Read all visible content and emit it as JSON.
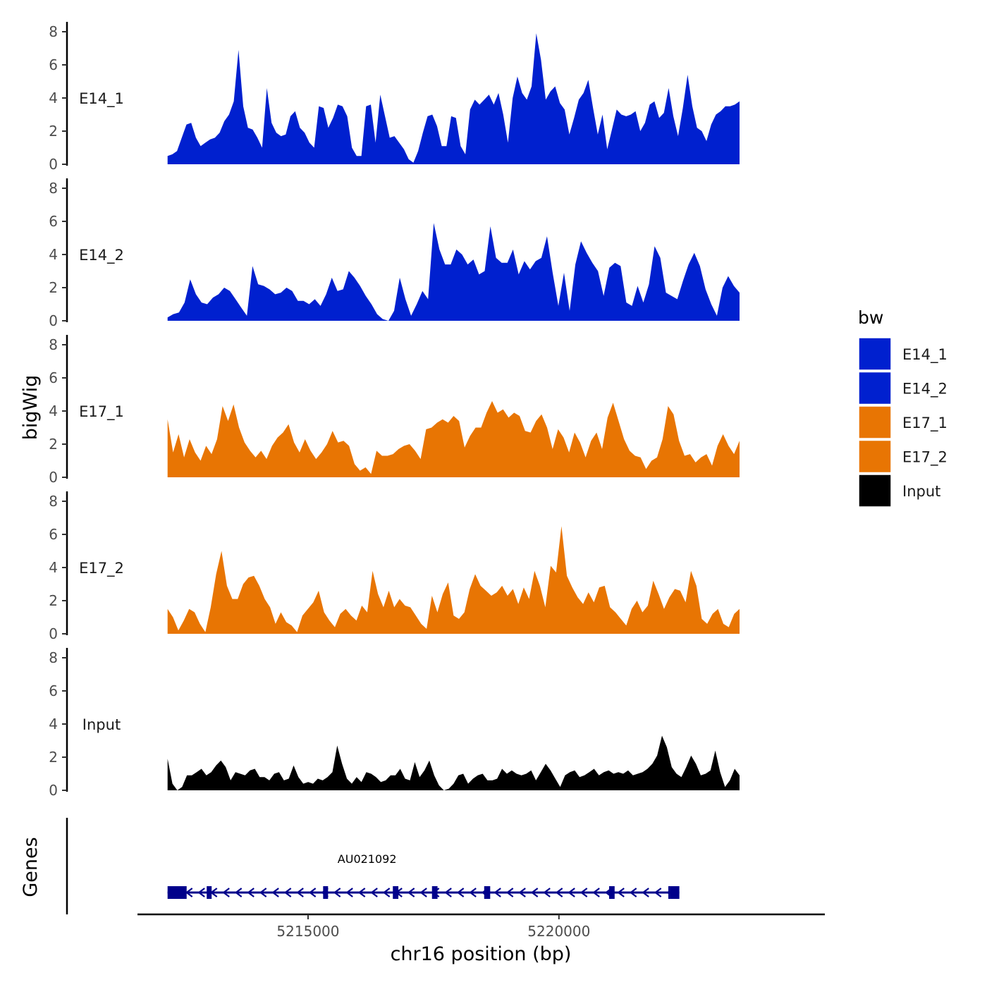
{
  "chart_data": {
    "type": "area",
    "ylabel": "bigWig",
    "xlabel": "chr16 position (bp)",
    "genes_label": "Genes",
    "ylim": [
      0,
      8
    ],
    "yticks": [
      0,
      2,
      4,
      6,
      8
    ],
    "xlim": [
      5211600,
      5225300
    ],
    "xticks": [
      5215000,
      5220000
    ],
    "xtick_labels": [
      "5215000",
      "5220000"
    ],
    "data_range": [
      5212200,
      5223600
    ],
    "legend": {
      "title": "bw",
      "entries": [
        {
          "label": "E14_1",
          "color": "#0020CF"
        },
        {
          "label": "E14_2",
          "color": "#0020CF"
        },
        {
          "label": "E17_1",
          "color": "#E87503"
        },
        {
          "label": "E17_2",
          "color": "#E87503"
        },
        {
          "label": "Input",
          "color": "#000000"
        }
      ]
    },
    "series": [
      {
        "name": "E14_1",
        "color": "#0020CF",
        "values": [
          0.5,
          0.6,
          0.8,
          1.6,
          2.4,
          2.5,
          1.6,
          1.1,
          1.3,
          1.5,
          1.6,
          1.9,
          2.6,
          3.0,
          3.8,
          6.9,
          3.5,
          2.2,
          2.1,
          1.6,
          1.0,
          4.6,
          2.5,
          1.9,
          1.7,
          1.8,
          2.9,
          3.2,
          2.2,
          1.9,
          1.3,
          1.0,
          3.5,
          3.4,
          2.2,
          2.8,
          3.6,
          3.5,
          2.9,
          1.0,
          0.5,
          0.5,
          3.5,
          3.6,
          1.3,
          4.2,
          2.9,
          1.6,
          1.7,
          1.3,
          0.9,
          0.3,
          0.1,
          0.8,
          1.9,
          2.9,
          3.0,
          2.3,
          1.1,
          1.1,
          2.9,
          2.8,
          1.1,
          0.6,
          3.3,
          3.9,
          3.6,
          3.9,
          4.2,
          3.6,
          4.3,
          3.0,
          1.3,
          4.0,
          5.3,
          4.3,
          3.9,
          4.7,
          7.9,
          6.3,
          3.9,
          4.4,
          4.7,
          3.7,
          3.3,
          1.8,
          2.8,
          3.9,
          4.3,
          5.1,
          3.4,
          1.8,
          3.0,
          0.9,
          2.1,
          3.3,
          3.0,
          2.9,
          3.0,
          3.2,
          2.0,
          2.5,
          3.6,
          3.8,
          2.8,
          3.1,
          4.6,
          2.9,
          1.7,
          3.4,
          5.4,
          3.5,
          2.2,
          2.0,
          1.4,
          2.4,
          3.0,
          3.2,
          3.5,
          3.5,
          3.6,
          3.8
        ]
      },
      {
        "name": "E14_2",
        "color": "#0020CF",
        "values": [
          0.2,
          0.4,
          0.5,
          1.1,
          2.5,
          1.6,
          1.1,
          1.0,
          1.4,
          1.6,
          2.0,
          1.8,
          1.3,
          0.8,
          0.3,
          3.3,
          2.2,
          2.1,
          1.9,
          1.6,
          1.7,
          2.0,
          1.8,
          1.2,
          1.2,
          1.0,
          1.3,
          0.9,
          1.6,
          2.6,
          1.8,
          1.9,
          3.0,
          2.6,
          2.1,
          1.5,
          1.0,
          0.4,
          0.1,
          0.0,
          0.6,
          2.6,
          1.3,
          0.3,
          1.0,
          1.8,
          1.3,
          5.9,
          4.3,
          3.4,
          3.4,
          4.3,
          4.0,
          3.4,
          3.7,
          2.8,
          3.0,
          5.7,
          3.8,
          3.5,
          3.5,
          4.3,
          2.8,
          3.6,
          3.1,
          3.6,
          3.8,
          5.1,
          2.9,
          0.9,
          2.9,
          0.6,
          3.4,
          4.8,
          4.1,
          3.5,
          3.0,
          1.5,
          3.2,
          3.5,
          3.3,
          1.1,
          0.9,
          2.1,
          1.1,
          2.2,
          4.5,
          3.8,
          1.7,
          1.5,
          1.3,
          2.4,
          3.4,
          4.1,
          3.3,
          1.9,
          1.0,
          0.3,
          2.0,
          2.7,
          2.1,
          1.7
        ]
      },
      {
        "name": "E17_1",
        "color": "#E87503",
        "values": [
          3.5,
          1.5,
          2.6,
          1.2,
          2.3,
          1.5,
          1.0,
          1.9,
          1.4,
          2.3,
          4.3,
          3.4,
          4.4,
          3.0,
          2.1,
          1.6,
          1.2,
          1.6,
          1.1,
          1.9,
          2.4,
          2.7,
          3.2,
          2.1,
          1.5,
          2.3,
          1.6,
          1.1,
          1.5,
          2.0,
          2.8,
          2.1,
          2.2,
          1.9,
          0.8,
          0.4,
          0.6,
          0.2,
          1.6,
          1.3,
          1.3,
          1.4,
          1.7,
          1.9,
          2.0,
          1.6,
          1.1,
          2.9,
          3.0,
          3.3,
          3.5,
          3.3,
          3.7,
          3.4,
          1.8,
          2.5,
          3.0,
          3.0,
          3.9,
          4.6,
          3.9,
          4.1,
          3.6,
          3.9,
          3.7,
          2.8,
          2.7,
          3.4,
          3.8,
          3.0,
          1.7,
          2.9,
          2.4,
          1.5,
          2.7,
          2.1,
          1.2,
          2.2,
          2.7,
          1.7,
          3.6,
          4.5,
          3.4,
          2.3,
          1.6,
          1.3,
          1.2,
          0.5,
          1.0,
          1.2,
          2.3,
          4.3,
          3.8,
          2.2,
          1.3,
          1.4,
          0.9,
          1.2,
          1.4,
          0.7,
          1.9,
          2.6,
          1.9,
          1.4,
          2.2
        ]
      },
      {
        "name": "E17_2",
        "color": "#E87503",
        "values": [
          1.5,
          1.0,
          0.2,
          0.8,
          1.5,
          1.3,
          0.6,
          0.1,
          1.6,
          3.6,
          5.0,
          2.9,
          2.1,
          2.1,
          3.0,
          3.4,
          3.5,
          2.9,
          2.1,
          1.6,
          0.6,
          1.3,
          0.7,
          0.5,
          0.1,
          1.1,
          1.5,
          1.9,
          2.6,
          1.3,
          0.8,
          0.4,
          1.2,
          1.5,
          1.1,
          0.8,
          1.7,
          1.3,
          3.8,
          2.4,
          1.6,
          2.6,
          1.6,
          2.1,
          1.7,
          1.6,
          1.1,
          0.6,
          0.3,
          2.3,
          1.3,
          2.4,
          3.1,
          1.1,
          0.9,
          1.3,
          2.7,
          3.6,
          2.9,
          2.6,
          2.3,
          2.5,
          2.9,
          2.3,
          2.7,
          1.8,
          2.8,
          2.1,
          3.8,
          2.9,
          1.6,
          4.1,
          3.7,
          6.5,
          3.5,
          2.8,
          2.2,
          1.8,
          2.5,
          1.9,
          2.8,
          2.9,
          1.6,
          1.3,
          0.9,
          0.5,
          1.5,
          2.0,
          1.3,
          1.7,
          3.2,
          2.4,
          1.5,
          2.2,
          2.7,
          2.6,
          1.9,
          3.8,
          2.9,
          0.9,
          0.6,
          1.2,
          1.5,
          0.6,
          0.4,
          1.2,
          1.5
        ]
      },
      {
        "name": "Input",
        "color": "#000000",
        "values": [
          1.9,
          0.4,
          0.0,
          0.2,
          0.9,
          0.9,
          1.1,
          1.3,
          0.9,
          1.1,
          1.5,
          1.8,
          1.4,
          0.6,
          1.1,
          1.0,
          0.9,
          1.2,
          1.3,
          0.8,
          0.8,
          0.6,
          1.0,
          1.1,
          0.6,
          0.7,
          1.5,
          0.8,
          0.4,
          0.5,
          0.4,
          0.7,
          0.6,
          0.8,
          1.1,
          2.7,
          1.6,
          0.7,
          0.4,
          0.8,
          0.5,
          1.1,
          1.0,
          0.8,
          0.5,
          0.6,
          0.9,
          0.9,
          1.3,
          0.7,
          0.6,
          1.7,
          0.8,
          1.2,
          1.8,
          0.9,
          0.3,
          0.0,
          0.1,
          0.4,
          0.9,
          1.0,
          0.4,
          0.7,
          0.9,
          1.0,
          0.6,
          0.6,
          0.7,
          1.3,
          1.0,
          1.2,
          1.0,
          0.9,
          1.0,
          1.2,
          0.6,
          1.1,
          1.6,
          1.2,
          0.7,
          0.2,
          0.9,
          1.1,
          1.2,
          0.8,
          0.9,
          1.1,
          1.3,
          0.9,
          1.1,
          1.2,
          1.0,
          1.1,
          1.0,
          1.2,
          0.9,
          1.0,
          1.1,
          1.3,
          1.6,
          2.1,
          3.3,
          2.6,
          1.4,
          1.0,
          0.8,
          1.4,
          2.1,
          1.6,
          0.9,
          1.0,
          1.2,
          2.4,
          1.1,
          0.2,
          0.6,
          1.3,
          0.9
        ]
      }
    ],
    "gene": {
      "name": "AU021092",
      "strand": "-",
      "start": 5212200,
      "end": 5222400,
      "exons": [
        [
          5212200,
          5212580
        ],
        [
          5212980,
          5213070
        ],
        [
          5215300,
          5215390
        ],
        [
          5216690,
          5216800
        ],
        [
          5217470,
          5217580
        ],
        [
          5218510,
          5218630
        ],
        [
          5221000,
          5221110
        ],
        [
          5222180,
          5222400
        ]
      ]
    }
  }
}
